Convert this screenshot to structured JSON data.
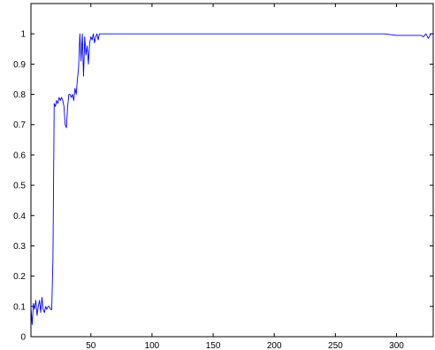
{
  "chart_data": {
    "type": "line",
    "title": "",
    "xlabel": "",
    "ylabel": "",
    "xlim": [
      1,
      330
    ],
    "ylim": [
      0,
      1.1
    ],
    "grid": false,
    "legend": "none",
    "x_ticks": [
      50,
      100,
      150,
      200,
      250,
      300
    ],
    "x_tick_labels": [
      "50",
      "100",
      "150",
      "200",
      "250",
      "300"
    ],
    "y_ticks": [
      0,
      0.1,
      0.2,
      0.3,
      0.4,
      0.5,
      0.6,
      0.7,
      0.8,
      0.9,
      1
    ],
    "y_tick_labels": [
      "0",
      "0.1",
      "0.2",
      "0.3",
      "0.4",
      "0.5",
      "0.6",
      "0.7",
      "0.8",
      "0.9",
      "1"
    ],
    "series": [
      {
        "color": "#0000ff",
        "x": [
          1,
          2,
          3,
          4,
          5,
          6,
          7,
          8,
          9,
          10,
          11,
          12,
          13,
          14,
          15,
          16,
          17,
          18,
          19,
          20,
          21,
          22,
          23,
          24,
          25,
          26,
          27,
          28,
          29,
          30,
          31,
          32,
          33,
          34,
          35,
          36,
          37,
          38,
          39,
          40,
          41,
          42,
          43,
          44,
          45,
          46,
          47,
          48,
          49,
          50,
          51,
          52,
          53,
          54,
          55,
          56,
          57,
          58,
          60,
          80,
          100,
          150,
          200,
          250,
          290,
          300,
          310,
          320,
          322,
          324,
          326,
          328,
          330
        ],
        "y": [
          0.1,
          0.04,
          0.11,
          0.09,
          0.12,
          0.07,
          0.1,
          0.12,
          0.08,
          0.13,
          0.09,
          0.08,
          0.1,
          0.09,
          0.1,
          0.1,
          0.09,
          0.09,
          0.26,
          0.77,
          0.76,
          0.78,
          0.77,
          0.79,
          0.78,
          0.79,
          0.78,
          0.76,
          0.7,
          0.69,
          0.76,
          0.8,
          0.8,
          0.79,
          0.8,
          0.78,
          0.82,
          0.8,
          0.85,
          0.89,
          1.0,
          0.91,
          1.0,
          0.86,
          0.99,
          0.93,
          0.96,
          0.9,
          0.97,
          0.99,
          0.98,
          1.0,
          0.97,
          0.99,
          1.0,
          0.98,
          1.0,
          1.0,
          1.0,
          1.0,
          1.0,
          1.0,
          1.0,
          1.0,
          1.0,
          0.995,
          0.995,
          0.995,
          0.99,
          1.0,
          0.985,
          1.0,
          1.0
        ]
      }
    ]
  }
}
